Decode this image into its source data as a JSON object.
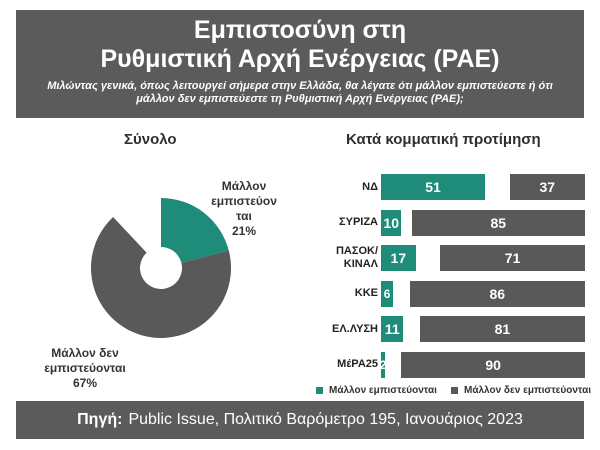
{
  "header": {
    "title_line1": "Εμπιστοσύνη στη",
    "title_line2": "Ρυθμιστική Αρχή Ενέργειας (ΡΑΕ)",
    "question": "Μιλώντας γενικά, όπως λειτουργεί σήμερα στην Ελλάδα, θα λέγατε ότι μάλλον εμπιστεύεστε ή ότι μάλλον δεν εμπιστεύεστε τη Ρυθμιστική Αρχή Ενέργειας (ΡΑΕ);"
  },
  "colors": {
    "trust": "#1e8c78",
    "distrust": "#595959",
    "header_bg": "#5b5b5b"
  },
  "chart_data": [
    {
      "type": "pie",
      "title": "Σύνολο",
      "slices": [
        {
          "label": "Μάλλον εμπιστεύονται",
          "value": 21,
          "display": "Μάλλον\nεμπιστεύον\nται\n21%"
        },
        {
          "label": "Μάλλον δεν εμπιστεύονται",
          "value": 67,
          "display": "Μάλλον δεν\nεμπιστεύονται\n67%"
        }
      ]
    },
    {
      "type": "bar",
      "title": "Κατά κομματική προτίμηση",
      "categories": [
        "ΝΔ",
        "ΣΥΡΙΖΑ",
        "ΠΑΣΟΚ/ ΚΙΝΑΛ",
        "ΚΚΕ",
        "ΕΛ.ΛΥΣΗ",
        "ΜέΡΑ25"
      ],
      "series": [
        {
          "name": "Μάλλον εμπιστεύονται",
          "values": [
            51,
            10,
            17,
            6,
            11,
            2
          ]
        },
        {
          "name": "Μάλλον δεν εμπιστεύονται",
          "values": [
            37,
            85,
            71,
            86,
            81,
            90
          ]
        }
      ],
      "legend_position": "bottom"
    }
  ],
  "footer": {
    "source_label": "Πηγή:",
    "source_text": "Public Issue, Πολιτικό Βαρόμετρο 195, Ιανουάριος 2023"
  }
}
